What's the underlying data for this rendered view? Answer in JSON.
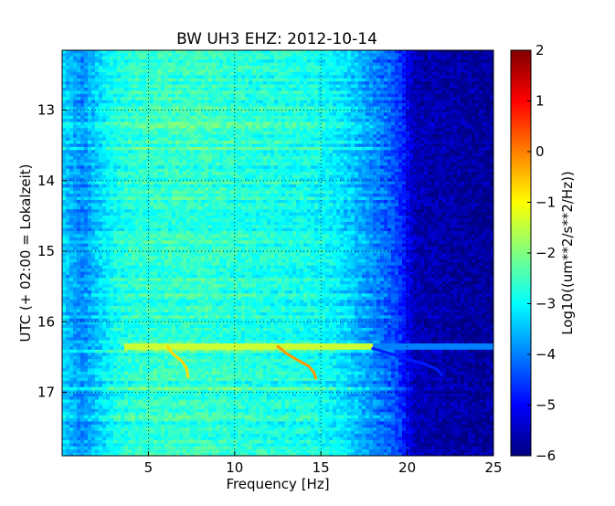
{
  "chart_data": {
    "type": "heatmap",
    "title": "BW UH3 EHZ: 2012-10-14",
    "xlabel": "Frequency [Hz]",
    "ylabel": "UTC (+ 02:00 = Lokalzeit)",
    "xlim": [
      0,
      25
    ],
    "ylim": [
      12.15,
      17.9
    ],
    "y_inverted": true,
    "grid": true,
    "grid_style": "dotted",
    "x_ticks": [
      5,
      10,
      15,
      20,
      25
    ],
    "x_tick_labels": [
      "5",
      "10",
      "15",
      "20",
      "25"
    ],
    "y_ticks": [
      13,
      14,
      15,
      16,
      17
    ],
    "y_tick_labels": [
      "13",
      "14",
      "15",
      "16",
      "17"
    ],
    "colormap": "jet",
    "colorbar": {
      "label": "Log10((um**2/s**2/Hz))",
      "range": [
        -6,
        2
      ],
      "ticks": [
        2,
        1,
        0,
        -1,
        -2,
        -3,
        -4,
        -5,
        -6
      ],
      "tick_labels": [
        "2",
        "1",
        "0",
        "−1",
        "−2",
        "−3",
        "−4",
        "−5",
        "−6"
      ]
    },
    "background_spectrum": {
      "frequency_hz": [
        0,
        0.5,
        1.2,
        2.0,
        3.0,
        4.0,
        6.0,
        8.0,
        10.0,
        12.0,
        14.0,
        15.5,
        16.5,
        17.5,
        18.5,
        19.5,
        20.5,
        25
      ],
      "log10_psd": [
        -3.3,
        -3.6,
        -3.9,
        -3.4,
        -2.9,
        -2.7,
        -2.6,
        -2.6,
        -2.7,
        -2.8,
        -2.85,
        -3.0,
        -3.3,
        -3.7,
        -4.1,
        -4.5,
        -5.6,
        -5.8
      ]
    },
    "events": [
      {
        "time": 16.35,
        "f_start": 3.5,
        "f_end": 18.0,
        "level": -1.4
      },
      {
        "time": 16.35,
        "f_start": 18.0,
        "f_end": 25.0,
        "level": -4.0
      }
    ],
    "tracks": [
      {
        "points": [
          [
            6.1,
            16.35
          ],
          [
            6.4,
            16.45
          ],
          [
            6.9,
            16.55
          ],
          [
            7.2,
            16.65
          ],
          [
            7.3,
            16.78
          ]
        ],
        "level": -0.7
      },
      {
        "points": [
          [
            12.5,
            16.35
          ],
          [
            13.0,
            16.45
          ],
          [
            13.7,
            16.55
          ],
          [
            14.3,
            16.63
          ],
          [
            14.6,
            16.72
          ],
          [
            14.7,
            16.8
          ]
        ],
        "level": -0.2
      },
      {
        "points": [
          [
            18.0,
            16.38
          ],
          [
            19.0,
            16.45
          ],
          [
            20.0,
            16.53
          ],
          [
            21.0,
            16.6
          ],
          [
            21.7,
            16.67
          ],
          [
            22.0,
            16.75
          ]
        ],
        "level": -4.8
      }
    ]
  }
}
